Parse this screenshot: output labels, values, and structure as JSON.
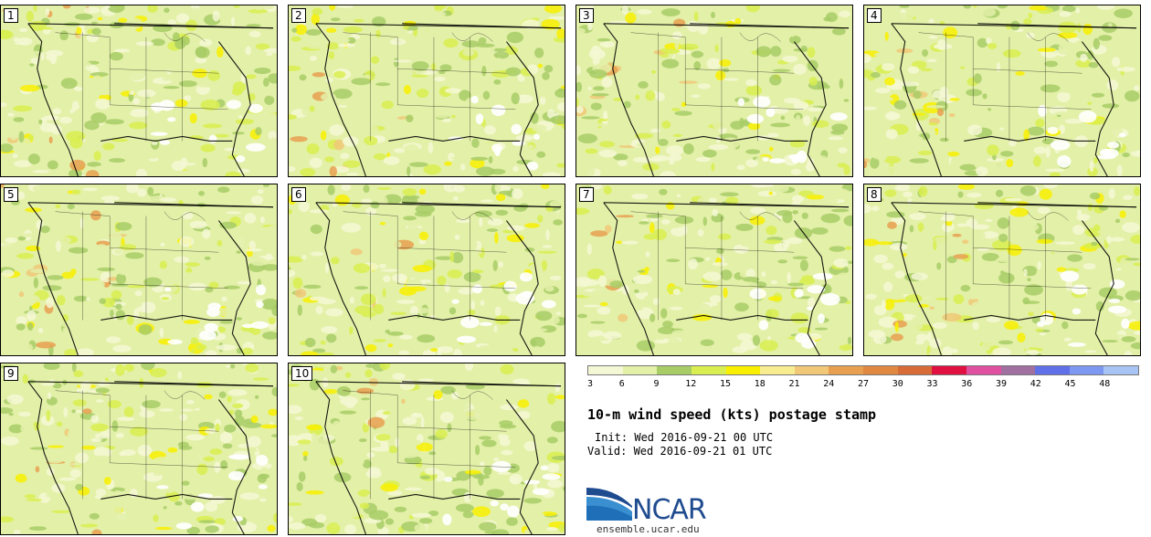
{
  "panels": [
    {
      "label": "1"
    },
    {
      "label": "2"
    },
    {
      "label": "3"
    },
    {
      "label": "4"
    },
    {
      "label": "5"
    },
    {
      "label": "6"
    },
    {
      "label": "7"
    },
    {
      "label": "8"
    },
    {
      "label": "9"
    },
    {
      "label": "10"
    }
  ],
  "legend": {
    "labels": [
      "3",
      "6",
      "9",
      "12",
      "15",
      "18",
      "21",
      "24",
      "27",
      "30",
      "33",
      "36",
      "39",
      "42",
      "45",
      "48"
    ],
    "colors": [
      "#f4f8d4",
      "#e3f0a8",
      "#a8cc66",
      "#d9ee50",
      "#f8f000",
      "#f8ec90",
      "#f0c878",
      "#e8a050",
      "#e08840",
      "#d86c38",
      "#e01040",
      "#e050a0",
      "#a070a0",
      "#6070e8",
      "#7c98f0",
      "#a8c4f4"
    ]
  },
  "title": "10-m wind speed (kts) postage stamp",
  "init": "Init: Wed 2016-09-21 00 UTC",
  "valid": "Valid: Wed 2016-09-21 01 UTC",
  "logo": {
    "name": "NCAR",
    "url": "ensemble.ucar.edu"
  }
}
